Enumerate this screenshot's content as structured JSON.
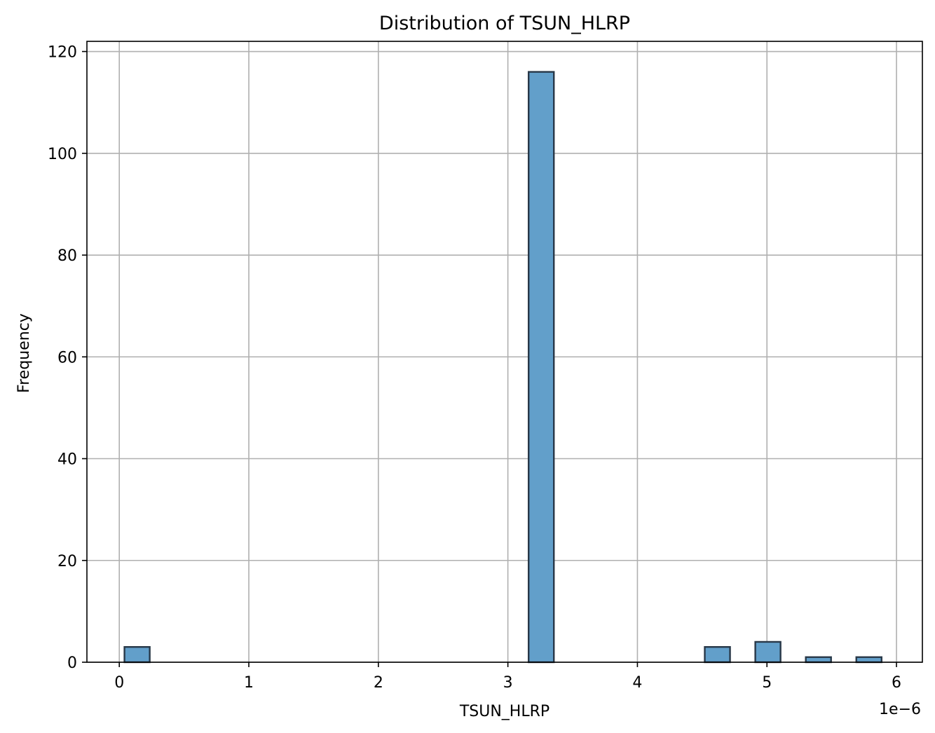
{
  "chart_data": {
    "type": "bar",
    "title": "Distribution of TSUN_HLRP",
    "xlabel": "TSUN_HLRP",
    "ylabel": "Frequency",
    "x_offset_label": "1e−6",
    "xlim": [
      -0.25,
      6.2
    ],
    "ylim": [
      0,
      122
    ],
    "xticks": [
      0,
      1,
      2,
      3,
      4,
      5,
      6
    ],
    "yticks": [
      0,
      20,
      40,
      60,
      80,
      100,
      120
    ],
    "grid": true,
    "bin_width": 0.195,
    "bins": [
      {
        "x0": 0.04,
        "x1": 0.235,
        "count": 3
      },
      {
        "x0": 3.16,
        "x1": 3.355,
        "count": 116
      },
      {
        "x0": 4.52,
        "x1": 4.715,
        "count": 3
      },
      {
        "x0": 4.91,
        "x1": 5.105,
        "count": 4
      },
      {
        "x0": 5.3,
        "x1": 5.495,
        "count": 1
      },
      {
        "x0": 5.69,
        "x1": 5.885,
        "count": 1
      }
    ],
    "colors": {
      "bar_fill": "#629fca",
      "bar_edge": "#283848",
      "grid": "#b0b0b0",
      "axis": "#000000"
    }
  }
}
